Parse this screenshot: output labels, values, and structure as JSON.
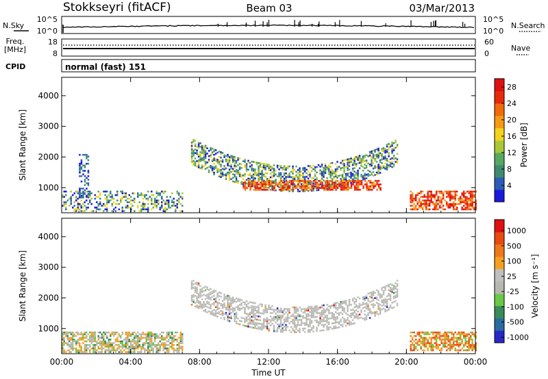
{
  "header": {
    "station": "Stokkseyri (fitACF)",
    "beam": "Beam 03",
    "date": "03/Mar/2013"
  },
  "noise_panel": {
    "left_label": "N.Sky",
    "right_label": "N.Search",
    "left_top": "10^5",
    "left_bottom": "10^0",
    "right_top": "10^5",
    "right_bottom": "10^0"
  },
  "freq_panel": {
    "left_label_line1": "Freq.",
    "left_label_line2": "[MHz]",
    "left_top": "18",
    "left_bottom": "8",
    "right_label": "Nave",
    "right_top": "60",
    "right_bottom": "0"
  },
  "cpid_panel": {
    "label": "CPID",
    "mode": "normal (fast) 151"
  },
  "colors": {
    "power": [
      "#1a1adc",
      "#2a5cb8",
      "#3f8a6e",
      "#58a860",
      "#a8c838",
      "#f4d21e",
      "#f59a12",
      "#f26a0c",
      "#e82a0a",
      "#e01010"
    ],
    "velocity": [
      "#2828c8",
      "#2a6aa0",
      "#3a8a5a",
      "#6ac848",
      "#b8b8b0",
      "#bfbfbf",
      "#f5a020",
      "#f07818",
      "#e84a10",
      "#e01010"
    ]
  },
  "chart_data": [
    {
      "type": "heatmap",
      "name": "power",
      "ylabel": "Slant Range [km]",
      "xlabel": "",
      "x_ticks": [
        "00:00",
        "04:00",
        "08:00",
        "12:00",
        "16:00",
        "20:00",
        "00:00"
      ],
      "x_range_hours": [
        0,
        24
      ],
      "y_ticks": [
        1000,
        2000,
        3000,
        4000
      ],
      "ylim": [
        180,
        4600
      ],
      "colorbar": {
        "label": "Power [dB]",
        "ticks": [
          4,
          8,
          12,
          16,
          20,
          24,
          28
        ],
        "range": [
          0,
          30
        ]
      },
      "echo_regions": [
        {
          "hours": [
            7.5,
            19.5
          ],
          "range_km": [
            900,
            2600
          ],
          "level": "weak-moderate"
        },
        {
          "hours": [
            10.5,
            18.5
          ],
          "range_km": [
            950,
            1250
          ],
          "level": "strong"
        },
        {
          "hours": [
            20.2,
            24.0
          ],
          "range_km": [
            300,
            900
          ],
          "level": "strong"
        },
        {
          "hours": [
            0.0,
            7.0
          ],
          "range_km": [
            250,
            900
          ],
          "level": "weak-moderate"
        },
        {
          "hours": [
            1.0,
            1.5
          ],
          "range_km": [
            700,
            2100
          ],
          "level": "weak"
        }
      ]
    },
    {
      "type": "heatmap",
      "name": "velocity",
      "ylabel": "Slant Range [km]",
      "xlabel": "Time UT",
      "x_ticks": [
        "00:00",
        "04:00",
        "08:00",
        "12:00",
        "16:00",
        "20:00",
        "00:00"
      ],
      "x_range_hours": [
        0,
        24
      ],
      "y_ticks": [
        1000,
        2000,
        3000,
        4000
      ],
      "ylim": [
        180,
        4600
      ],
      "colorbar": {
        "label": "Velocity [m s⁻¹]",
        "ticks": [
          1000,
          500,
          100,
          25,
          -25,
          -100,
          -500,
          -1000
        ]
      },
      "echo_regions": [
        {
          "hours": [
            7.5,
            19.5
          ],
          "range_km": [
            900,
            2600
          ],
          "level": "near-zero (grey)"
        },
        {
          "hours": [
            20.2,
            24.0
          ],
          "range_km": [
            300,
            900
          ],
          "level": "receding (orange)"
        },
        {
          "hours": [
            0.0,
            7.0
          ],
          "range_km": [
            250,
            900
          ],
          "level": "mixed"
        }
      ]
    }
  ]
}
